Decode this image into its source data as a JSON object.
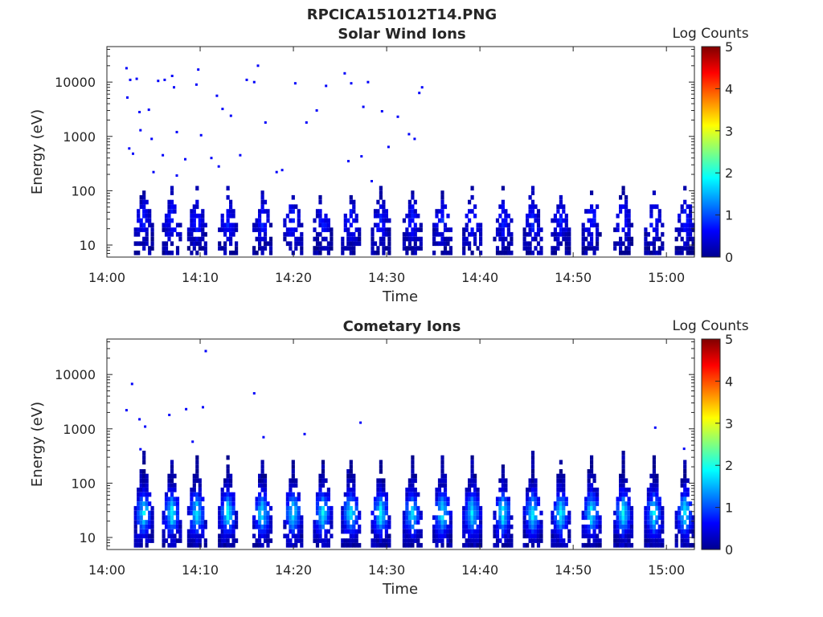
{
  "figure_title": "RPCICA151012T14.PNG",
  "chart_data": [
    {
      "type": "heatmap",
      "title": "Solar Wind Ions",
      "xlabel": "Time",
      "ylabel": "Energy (eV)",
      "x_ticks": [
        "14:00",
        "14:10",
        "14:20",
        "14:30",
        "14:40",
        "14:50",
        "15:00"
      ],
      "x_range_minutes": [
        0,
        63
      ],
      "y_scale": "log",
      "y_range": [
        6,
        45000
      ],
      "y_ticks": [
        {
          "value": 10,
          "label": "10"
        },
        {
          "value": 100,
          "label": "100"
        },
        {
          "value": 1000,
          "label": "1000"
        },
        {
          "value": 10000,
          "label": "10000"
        }
      ],
      "colorbar": {
        "label": "Log Counts",
        "range": [
          0,
          5
        ],
        "ticks": [
          "0",
          "1",
          "2",
          "3",
          "4",
          "5"
        ],
        "colormap": "jet"
      },
      "bursts_minutes": [
        3.8,
        6.8,
        9.5,
        12.8,
        16.5,
        19.8,
        23,
        26,
        29.2,
        32.6,
        35.8,
        39,
        42.3,
        45.5,
        48.5,
        51.8,
        55.2,
        58.5,
        61.8
      ],
      "burst_intensity": 0.6,
      "sparse_points": [
        {
          "t": 2.1,
          "e": 18000,
          "v": 0.6
        },
        {
          "t": 2.2,
          "e": 5200,
          "v": 0.6
        },
        {
          "t": 2.5,
          "e": 11000,
          "v": 0.6
        },
        {
          "t": 3.2,
          "e": 11500,
          "v": 0.6
        },
        {
          "t": 3.5,
          "e": 2800,
          "v": 0.6
        },
        {
          "t": 4.5,
          "e": 3100,
          "v": 0.6
        },
        {
          "t": 5.5,
          "e": 10500,
          "v": 0.6
        },
        {
          "t": 6.2,
          "e": 11000,
          "v": 0.6
        },
        {
          "t": 7.0,
          "e": 13000,
          "v": 0.6
        },
        {
          "t": 7.2,
          "e": 8000,
          "v": 0.6
        },
        {
          "t": 9.8,
          "e": 17000,
          "v": 0.6
        },
        {
          "t": 9.6,
          "e": 9000,
          "v": 0.6
        },
        {
          "t": 11.8,
          "e": 5600,
          "v": 0.6
        },
        {
          "t": 12.4,
          "e": 3200,
          "v": 0.6
        },
        {
          "t": 15.0,
          "e": 11000,
          "v": 0.6
        },
        {
          "t": 16.2,
          "e": 20000,
          "v": 0.6
        },
        {
          "t": 15.8,
          "e": 10000,
          "v": 0.6
        },
        {
          "t": 20.2,
          "e": 9500,
          "v": 0.6
        },
        {
          "t": 22.5,
          "e": 3000,
          "v": 0.6
        },
        {
          "t": 23.5,
          "e": 8500,
          "v": 0.6
        },
        {
          "t": 25.5,
          "e": 14500,
          "v": 0.6
        },
        {
          "t": 26.2,
          "e": 9500,
          "v": 0.6
        },
        {
          "t": 28.0,
          "e": 10000,
          "v": 0.6
        },
        {
          "t": 27.5,
          "e": 3500,
          "v": 0.6
        },
        {
          "t": 29.5,
          "e": 2900,
          "v": 0.6
        },
        {
          "t": 31.2,
          "e": 2300,
          "v": 0.6
        },
        {
          "t": 33.8,
          "e": 8000,
          "v": 0.6
        },
        {
          "t": 33.5,
          "e": 6300,
          "v": 0.6
        },
        {
          "t": 2.4,
          "e": 600,
          "v": 0.6
        },
        {
          "t": 2.8,
          "e": 480,
          "v": 0.6
        },
        {
          "t": 3.6,
          "e": 1300,
          "v": 0.6
        },
        {
          "t": 4.8,
          "e": 900,
          "v": 0.6
        },
        {
          "t": 6.0,
          "e": 450,
          "v": 0.6
        },
        {
          "t": 7.5,
          "e": 1200,
          "v": 0.6
        },
        {
          "t": 8.4,
          "e": 380,
          "v": 0.6
        },
        {
          "t": 10.1,
          "e": 1050,
          "v": 0.6
        },
        {
          "t": 11.2,
          "e": 400,
          "v": 0.6
        },
        {
          "t": 12.0,
          "e": 280,
          "v": 0.6
        },
        {
          "t": 13.3,
          "e": 2400,
          "v": 0.6
        },
        {
          "t": 14.3,
          "e": 450,
          "v": 0.6
        },
        {
          "t": 17.0,
          "e": 1800,
          "v": 0.6
        },
        {
          "t": 18.8,
          "e": 240,
          "v": 0.6
        },
        {
          "t": 21.4,
          "e": 1800,
          "v": 0.6
        },
        {
          "t": 25.9,
          "e": 350,
          "v": 0.6
        },
        {
          "t": 27.3,
          "e": 430,
          "v": 0.6
        },
        {
          "t": 28.4,
          "e": 150,
          "v": 0.6
        },
        {
          "t": 30.2,
          "e": 640,
          "v": 0.6
        },
        {
          "t": 32.4,
          "e": 1100,
          "v": 0.6
        },
        {
          "t": 33.0,
          "e": 900,
          "v": 0.6
        },
        {
          "t": 18.2,
          "e": 220,
          "v": 0.6
        },
        {
          "t": 5.0,
          "e": 220,
          "v": 0.6
        },
        {
          "t": 7.5,
          "e": 190,
          "v": 0.6
        }
      ]
    },
    {
      "type": "heatmap",
      "title": "Cometary Ions",
      "xlabel": "Time",
      "ylabel": "Energy (eV)",
      "x_ticks": [
        "14:00",
        "14:10",
        "14:20",
        "14:30",
        "14:40",
        "14:50",
        "15:00"
      ],
      "x_range_minutes": [
        0,
        63
      ],
      "y_scale": "log",
      "y_range": [
        6,
        45000
      ],
      "y_ticks": [
        {
          "value": 10,
          "label": "10"
        },
        {
          "value": 100,
          "label": "100"
        },
        {
          "value": 1000,
          "label": "1000"
        },
        {
          "value": 10000,
          "label": "10000"
        }
      ],
      "colorbar": {
        "label": "Log Counts",
        "range": [
          0,
          5
        ],
        "ticks": [
          "0",
          "1",
          "2",
          "3",
          "4",
          "5"
        ],
        "colormap": "jet"
      },
      "bursts_minutes": [
        3.8,
        6.8,
        9.5,
        12.8,
        16.5,
        19.8,
        23,
        26,
        29.2,
        32.6,
        35.8,
        39,
        42.3,
        45.5,
        48.5,
        51.8,
        55.2,
        58.5,
        61.8
      ],
      "burst_intensity": 1.7,
      "sparse_points": [
        {
          "t": 2.1,
          "e": 2200,
          "v": 0.6
        },
        {
          "t": 2.7,
          "e": 6700,
          "v": 0.6
        },
        {
          "t": 3.5,
          "e": 1500,
          "v": 0.6
        },
        {
          "t": 6.7,
          "e": 1800,
          "v": 0.6
        },
        {
          "t": 8.5,
          "e": 2300,
          "v": 0.6
        },
        {
          "t": 10.3,
          "e": 2500,
          "v": 0.6
        },
        {
          "t": 10.6,
          "e": 27000,
          "v": 0.6
        },
        {
          "t": 15.8,
          "e": 4500,
          "v": 0.6
        },
        {
          "t": 16.8,
          "e": 700,
          "v": 0.6
        },
        {
          "t": 21.2,
          "e": 800,
          "v": 0.6
        },
        {
          "t": 27.2,
          "e": 1300,
          "v": 0.6
        },
        {
          "t": 9.2,
          "e": 580,
          "v": 0.6
        },
        {
          "t": 4.1,
          "e": 1100,
          "v": 0.6
        },
        {
          "t": 58.8,
          "e": 1050,
          "v": 0.6
        },
        {
          "t": 61.9,
          "e": 430,
          "v": 0.6
        },
        {
          "t": 3.6,
          "e": 420,
          "v": 0.6
        }
      ]
    }
  ]
}
